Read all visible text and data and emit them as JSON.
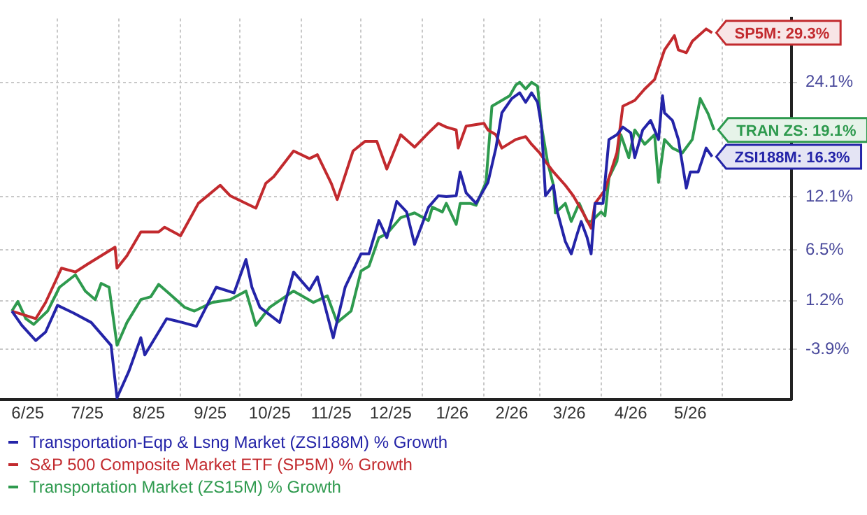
{
  "chart_data": {
    "type": "line",
    "xlim": [
      "2025-06-02",
      "2026-07-06"
    ],
    "xticks": [
      {
        "value": "2025-06-16",
        "label": "6/25"
      },
      {
        "value": "2025-07-01",
        "label": null
      },
      {
        "value": "2025-07-16",
        "label": "7/25"
      },
      {
        "value": "2025-08-01",
        "label": null
      },
      {
        "value": "2025-08-16",
        "label": "8/25"
      },
      {
        "value": "2025-09-01",
        "label": null
      },
      {
        "value": "2025-09-16",
        "label": "9/25"
      },
      {
        "value": "2025-10-01",
        "label": null
      },
      {
        "value": "2025-10-16",
        "label": "10/25"
      },
      {
        "value": "2025-11-01",
        "label": null
      },
      {
        "value": "2025-11-16",
        "label": "11/25"
      },
      {
        "value": "2025-12-01",
        "label": null
      },
      {
        "value": "2025-12-16",
        "label": "12/25"
      },
      {
        "value": "2026-01-01",
        "label": null
      },
      {
        "value": "2026-01-16",
        "label": "1/26"
      },
      {
        "value": "2026-02-01",
        "label": null
      },
      {
        "value": "2026-02-15",
        "label": "2/26"
      },
      {
        "value": "2026-03-01",
        "label": null
      },
      {
        "value": "2026-03-16",
        "label": "3/26"
      },
      {
        "value": "2026-04-01",
        "label": null
      },
      {
        "value": "2026-04-16",
        "label": "4/26"
      },
      {
        "value": "2026-05-01",
        "label": null
      },
      {
        "value": "2026-05-16",
        "label": "5/26"
      },
      {
        "value": "2026-06-01",
        "label": null
      }
    ],
    "ylim": [
      -9.2,
      30.8
    ],
    "yticks": [
      {
        "value": -3.9,
        "label": "-3.9%"
      },
      {
        "value": 1.2,
        "label": "1.2%"
      },
      {
        "value": 6.5,
        "label": "6.5%"
      },
      {
        "value": 12.1,
        "label": "12.1%"
      },
      {
        "value": 24.1,
        "label": "24.1%"
      }
    ],
    "grid": true,
    "legend": "bottom",
    "marker": "none",
    "line_style": "solid",
    "series": [
      {
        "name": "Transportation-Eqp & Lsng Market (ZSI188M) % Growth",
        "color": "#2424a8",
        "x": [
          "2025-06-08",
          "2025-06-13",
          "2025-06-20",
          "2025-06-25",
          "2025-07-01",
          "2025-07-09",
          "2025-07-18",
          "2025-07-28",
          "2025-07-31",
          "2025-08-06",
          "2025-08-12",
          "2025-08-14",
          "2025-08-25",
          "2025-09-02",
          "2025-09-09",
          "2025-09-19",
          "2025-09-28",
          "2025-10-04",
          "2025-10-07",
          "2025-10-11",
          "2025-10-21",
          "2025-10-28",
          "2025-11-05",
          "2025-11-09",
          "2025-11-17",
          "2025-11-23",
          "2025-12-01",
          "2025-12-05",
          "2025-12-10",
          "2025-12-14",
          "2025-12-19",
          "2025-12-24",
          "2025-12-28",
          "2026-01-04",
          "2026-01-09",
          "2026-01-13",
          "2026-01-18",
          "2026-01-20",
          "2026-01-23",
          "2026-01-28",
          "2026-02-03",
          "2026-02-07",
          "2026-02-10",
          "2026-02-15",
          "2026-02-19",
          "2026-02-22",
          "2026-02-25",
          "2026-02-28",
          "2026-03-02",
          "2026-03-04",
          "2026-03-08",
          "2026-03-10",
          "2026-03-14",
          "2026-03-17",
          "2026-03-20",
          "2026-03-22",
          "2026-03-25",
          "2026-03-27",
          "2026-03-29",
          "2026-04-02",
          "2026-04-05",
          "2026-04-09",
          "2026-04-12",
          "2026-04-16",
          "2026-04-18",
          "2026-04-22",
          "2026-04-26",
          "2026-04-30",
          "2026-05-02",
          "2026-05-03",
          "2026-05-07",
          "2026-05-10",
          "2026-05-14",
          "2026-05-16",
          "2026-05-20",
          "2026-05-24",
          "2026-05-27"
        ],
        "values": [
          0.1,
          -1.4,
          -3.0,
          -2.1,
          0.7,
          -0.1,
          -1.1,
          -3.5,
          -9.0,
          -6.2,
          -2.7,
          -4.5,
          -0.7,
          -1.1,
          -1.5,
          2.6,
          2.0,
          5.5,
          2.6,
          0.5,
          -1.1,
          4.2,
          2.3,
          3.7,
          -2.7,
          2.6,
          6.1,
          6.1,
          9.6,
          7.8,
          11.6,
          10.5,
          7.1,
          11.0,
          12.2,
          12.1,
          12.2,
          14.7,
          12.5,
          11.4,
          13.6,
          17.2,
          20.9,
          22.4,
          23.0,
          22.0,
          23.0,
          22.0,
          19.5,
          12.2,
          13.3,
          10.5,
          7.4,
          6.1,
          8.2,
          9.5,
          7.8,
          6.1,
          11.4,
          11.4,
          18.1,
          18.6,
          19.4,
          18.8,
          16.2,
          19.1,
          20.1,
          18.1,
          22.7,
          20.9,
          20.1,
          18.1,
          13.0,
          14.7,
          14.7,
          17.2,
          16.3
        ]
      },
      {
        "name": "S&P 500 Composite Market ETF (SP5M) % Growth",
        "color": "#c22a2e",
        "x": [
          "2025-06-08",
          "2025-06-20",
          "2025-06-25",
          "2025-07-03",
          "2025-07-10",
          "2025-07-16",
          "2025-07-30",
          "2025-07-31",
          "2025-08-05",
          "2025-08-12",
          "2025-08-21",
          "2025-08-24",
          "2025-09-01",
          "2025-09-10",
          "2025-09-21",
          "2025-09-26",
          "2025-10-09",
          "2025-10-14",
          "2025-10-18",
          "2025-10-28",
          "2025-11-05",
          "2025-11-09",
          "2025-11-16",
          "2025-11-19",
          "2025-11-27",
          "2025-12-03",
          "2025-12-09",
          "2025-12-14",
          "2025-12-21",
          "2025-12-28",
          "2026-01-04",
          "2026-01-09",
          "2026-01-13",
          "2026-01-18",
          "2026-01-19",
          "2026-01-23",
          "2026-02-01",
          "2026-02-03",
          "2026-02-07",
          "2026-02-10",
          "2026-02-17",
          "2026-02-22",
          "2026-02-25",
          "2026-03-01",
          "2026-03-04",
          "2026-03-08",
          "2026-03-14",
          "2026-03-18",
          "2026-03-23",
          "2026-03-27",
          "2026-03-29",
          "2026-04-03",
          "2026-04-09",
          "2026-04-12",
          "2026-04-18",
          "2026-04-23",
          "2026-04-28",
          "2026-05-03",
          "2026-05-08",
          "2026-05-10",
          "2026-05-14",
          "2026-05-17",
          "2026-05-24",
          "2026-05-27"
        ],
        "values": [
          0.1,
          -0.7,
          1.0,
          4.6,
          4.2,
          5.0,
          6.8,
          4.6,
          5.9,
          8.4,
          8.4,
          8.9,
          8.0,
          11.4,
          13.3,
          12.2,
          10.9,
          13.5,
          14.2,
          16.9,
          16.1,
          16.5,
          13.5,
          11.8,
          16.9,
          17.9,
          17.9,
          15.0,
          18.6,
          17.3,
          18.8,
          19.8,
          19.4,
          19.1,
          17.2,
          19.5,
          19.8,
          19.1,
          18.6,
          17.2,
          18.1,
          18.4,
          17.6,
          16.7,
          15.8,
          14.7,
          13.3,
          12.2,
          10.4,
          8.8,
          11.4,
          12.8,
          16.7,
          21.6,
          22.2,
          23.4,
          24.4,
          27.5,
          29.0,
          27.5,
          27.2,
          28.4,
          29.7,
          29.3
        ]
      },
      {
        "name": "Transportation Market (ZS15M) % Growth",
        "color": "#2e9a4e",
        "x": [
          "2025-06-08",
          "2025-06-11",
          "2025-06-15",
          "2025-06-19",
          "2025-06-26",
          "2025-07-02",
          "2025-07-10",
          "2025-07-15",
          "2025-07-20",
          "2025-07-23",
          "2025-07-27",
          "2025-07-31",
          "2025-08-05",
          "2025-08-12",
          "2025-08-17",
          "2025-08-21",
          "2025-08-26",
          "2025-09-03",
          "2025-09-08",
          "2025-09-17",
          "2025-09-26",
          "2025-10-04",
          "2025-10-09",
          "2025-10-16",
          "2025-10-28",
          "2025-11-07",
          "2025-11-14",
          "2025-11-19",
          "2025-11-26",
          "2025-12-01",
          "2025-12-05",
          "2025-12-10",
          "2025-12-14",
          "2025-12-21",
          "2025-12-28",
          "2026-01-04",
          "2026-01-06",
          "2026-01-11",
          "2026-01-13",
          "2026-01-18",
          "2026-01-20",
          "2026-01-25",
          "2026-01-28",
          "2026-02-02",
          "2026-02-05",
          "2026-02-10",
          "2026-02-14",
          "2026-02-17",
          "2026-02-19",
          "2026-02-22",
          "2026-02-25",
          "2026-02-28",
          "2026-03-02",
          "2026-03-05",
          "2026-03-08",
          "2026-03-09",
          "2026-03-14",
          "2026-03-17",
          "2026-03-21",
          "2026-03-25",
          "2026-03-27",
          "2026-04-01",
          "2026-04-03",
          "2026-04-05",
          "2026-04-09",
          "2026-04-11",
          "2026-04-15",
          "2026-04-18",
          "2026-04-23",
          "2026-04-28",
          "2026-04-30",
          "2026-05-03",
          "2026-05-07",
          "2026-05-12",
          "2026-05-17",
          "2026-05-21",
          "2026-05-25",
          "2026-05-28"
        ],
        "values": [
          0.1,
          1.1,
          -0.7,
          -1.3,
          0.1,
          2.6,
          3.9,
          2.2,
          1.3,
          3.0,
          2.6,
          -3.5,
          -1.1,
          1.3,
          1.6,
          2.9,
          2.0,
          0.5,
          0.1,
          1.0,
          1.3,
          2.2,
          -1.4,
          0.5,
          2.2,
          1.0,
          1.7,
          -1.1,
          0.1,
          4.3,
          4.8,
          7.8,
          8.2,
          9.9,
          10.4,
          9.6,
          11.0,
          10.5,
          11.4,
          9.2,
          11.4,
          11.4,
          11.2,
          13.6,
          21.6,
          22.2,
          22.7,
          23.8,
          24.1,
          23.4,
          24.1,
          23.7,
          19.5,
          15.8,
          13.3,
          10.4,
          11.4,
          9.5,
          11.4,
          9.5,
          9.5,
          10.5,
          10.1,
          14.1,
          15.8,
          18.6,
          16.2,
          19.1,
          17.6,
          18.6,
          13.6,
          18.1,
          17.2,
          16.7,
          18.1,
          22.4,
          20.8,
          19.1
        ]
      }
    ],
    "annotations": [
      {
        "text": "SP5M: 29.3%",
        "x": "2026-05-27",
        "y": 29.3
      },
      {
        "text": "TRAN ZS: 19.1%",
        "x": "2026-05-28",
        "y": 19.1
      },
      {
        "text": "ZSI188M: 16.3%",
        "x": "2026-05-27",
        "y": 16.3
      }
    ]
  }
}
